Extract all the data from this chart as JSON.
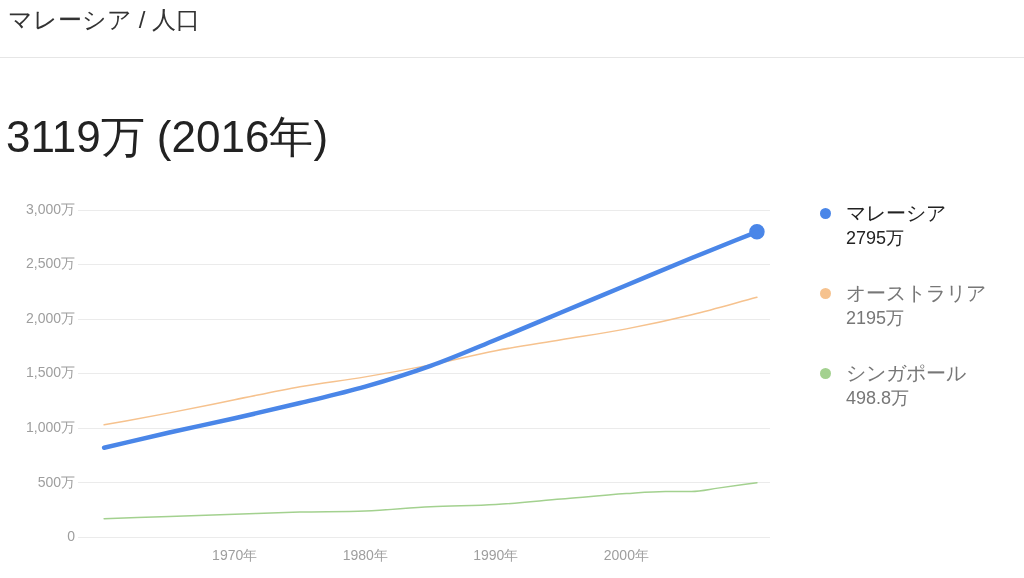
{
  "chart_data": {
    "type": "line",
    "subtitle": "マレーシア / 人口",
    "title": "3119万 (2016年)",
    "x": [
      1960,
      1965,
      1970,
      1975,
      1980,
      1985,
      1990,
      1995,
      2000,
      2005,
      2010
    ],
    "series": [
      {
        "name": "マレーシア",
        "color": "#4a86e8",
        "values": [
          820,
          960,
          1090,
          1230,
          1380,
          1570,
          1810,
          2060,
          2310,
          2560,
          2800
        ]
      },
      {
        "name": "オーストラリア",
        "color": "#f6c28e",
        "values": [
          1030,
          1140,
          1260,
          1380,
          1470,
          1580,
          1710,
          1810,
          1910,
          2040,
          2200
        ]
      },
      {
        "name": "シンガポール",
        "color": "#a3d18f",
        "x": [
          1960,
          1965,
          1970,
          1975,
          1980,
          1985,
          1990,
          1995,
          2000,
          2003,
          2005,
          2007,
          2010
        ],
        "values": [
          170,
          190,
          210,
          230,
          240,
          280,
          300,
          350,
          400,
          420,
          420,
          450,
          500
        ]
      },
      {
        "type": "scatter",
        "marker": "circle",
        "color": "#4a86e8",
        "x": [
          2010
        ],
        "values": [
          2800
        ]
      }
    ],
    "annotations": [
      "2795万",
      "2195万",
      "498.8万"
    ],
    "xlim": [
      1958,
      2011
    ],
    "xticks": [
      {
        "value": 1970,
        "label": "1970年"
      },
      {
        "value": 1980,
        "label": "1980年"
      },
      {
        "value": 1990,
        "label": "1990年"
      },
      {
        "value": 2000,
        "label": "2000年"
      }
    ],
    "ylim": [
      0,
      3000
    ],
    "yticks": [
      0,
      {
        "value": 500,
        "label": "500万"
      },
      {
        "value": 1000,
        "label": "1,000万"
      },
      {
        "value": 1500,
        "label": "1,500万"
      },
      {
        "value": 2000,
        "label": "2,000万"
      },
      {
        "value": 2500,
        "label": "2,500万"
      },
      {
        "value": 3000,
        "label": "3,000万"
      }
    ],
    "grid": "y",
    "legend": "right"
  }
}
